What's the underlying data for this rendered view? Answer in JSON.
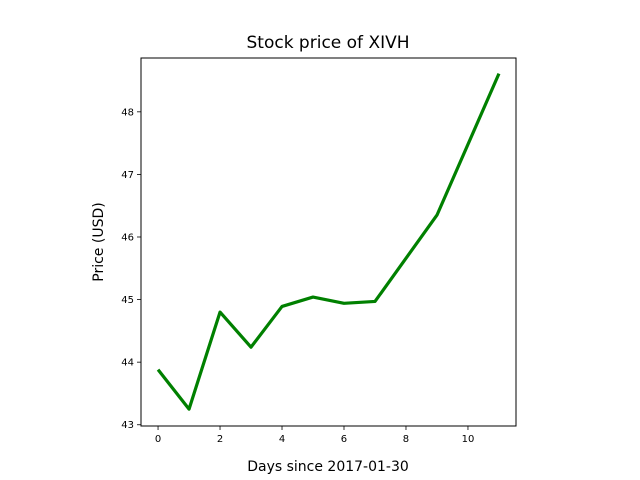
{
  "chart_data": {
    "type": "line",
    "title": "Stock price of XIVH",
    "xlabel": "Days since 2017-01-30",
    "ylabel": "Price (USD)",
    "xlim": [
      -0.55,
      11.55
    ],
    "ylim": [
      42.98,
      48.86
    ],
    "xticks": [
      0,
      2,
      4,
      6,
      8,
      10
    ],
    "yticks": [
      43,
      44,
      45,
      46,
      47,
      48
    ],
    "grid": false,
    "series": [
      {
        "color": "#008000",
        "x": [
          0,
          1,
          2,
          3,
          4,
          5,
          6,
          7,
          9,
          11
        ],
        "y": [
          43.88,
          43.25,
          44.8,
          44.24,
          44.89,
          45.04,
          44.94,
          44.97,
          46.35,
          48.61
        ]
      }
    ]
  }
}
